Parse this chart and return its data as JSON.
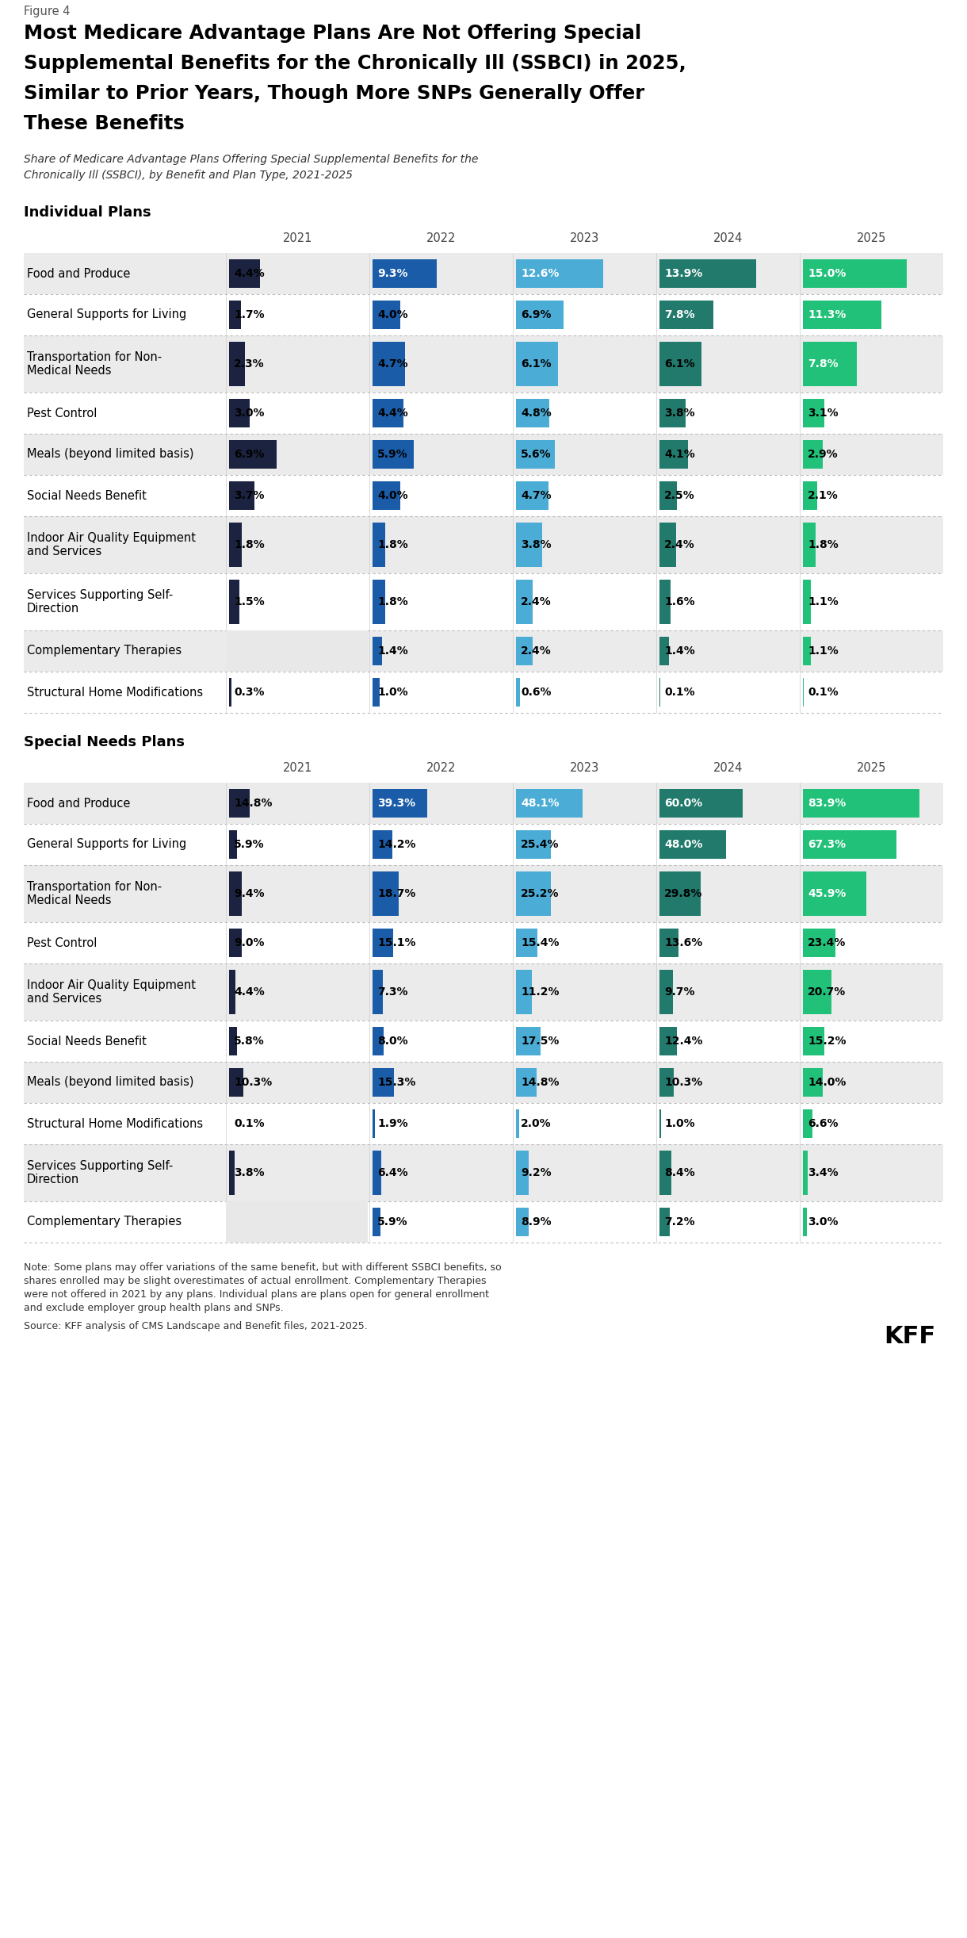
{
  "figure_label": "Figure 4",
  "title": "Most Medicare Advantage Plans Are Not Offering Special\nSupplemental Benefits for the Chronically Ill (SSBCI) in 2025,\nSimilar to Prior Years, Though More SNPs Generally Offer\nThese Benefits",
  "subtitle": "Share of Medicare Advantage Plans Offering Special Supplemental Benefits for the\nChronically Ill (SSBCI), by Benefit and Plan Type, 2021-2025",
  "years": [
    "2021",
    "2022",
    "2023",
    "2024",
    "2025"
  ],
  "year_colors": {
    "2021": "#1c2340",
    "2022": "#1a5ca8",
    "2023": "#4bacd6",
    "2024": "#217a6b",
    "2025": "#22c17a"
  },
  "individual_plans_label": "Individual Plans",
  "individual_plans": [
    {
      "benefit": "Food and Produce",
      "values": [
        4.4,
        9.3,
        12.6,
        13.9,
        15.0
      ]
    },
    {
      "benefit": "General Supports for Living",
      "values": [
        1.7,
        4.0,
        6.9,
        7.8,
        11.3
      ]
    },
    {
      "benefit": "Transportation for Non-\nMedical Needs",
      "values": [
        2.3,
        4.7,
        6.1,
        6.1,
        7.8
      ]
    },
    {
      "benefit": "Pest Control",
      "values": [
        3.0,
        4.4,
        4.8,
        3.8,
        3.1
      ]
    },
    {
      "benefit": "Meals (beyond limited basis)",
      "values": [
        6.9,
        5.9,
        5.6,
        4.1,
        2.9
      ]
    },
    {
      "benefit": "Social Needs Benefit",
      "values": [
        3.7,
        4.0,
        4.7,
        2.5,
        2.1
      ]
    },
    {
      "benefit": "Indoor Air Quality Equipment\nand Services",
      "values": [
        1.8,
        1.8,
        3.8,
        2.4,
        1.8
      ]
    },
    {
      "benefit": "Services Supporting Self-\nDirection",
      "values": [
        1.5,
        1.8,
        2.4,
        1.6,
        1.1
      ]
    },
    {
      "benefit": "Complementary Therapies",
      "values": [
        null,
        1.4,
        2.4,
        1.4,
        1.1
      ]
    },
    {
      "benefit": "Structural Home Modifications",
      "values": [
        0.3,
        1.0,
        0.6,
        0.1,
        0.1
      ]
    }
  ],
  "snp_plans_label": "Special Needs Plans",
  "snp_plans": [
    {
      "benefit": "Food and Produce",
      "values": [
        14.8,
        39.3,
        48.1,
        60.0,
        83.9
      ]
    },
    {
      "benefit": "General Supports for Living",
      "values": [
        5.9,
        14.2,
        25.4,
        48.0,
        67.3
      ]
    },
    {
      "benefit": "Transportation for Non-\nMedical Needs",
      "values": [
        9.4,
        18.7,
        25.2,
        29.8,
        45.9
      ]
    },
    {
      "benefit": "Pest Control",
      "values": [
        9.0,
        15.1,
        15.4,
        13.6,
        23.4
      ]
    },
    {
      "benefit": "Indoor Air Quality Equipment\nand Services",
      "values": [
        4.4,
        7.3,
        11.2,
        9.7,
        20.7
      ]
    },
    {
      "benefit": "Social Needs Benefit",
      "values": [
        5.8,
        8.0,
        17.5,
        12.4,
        15.2
      ]
    },
    {
      "benefit": "Meals (beyond limited basis)",
      "values": [
        10.3,
        15.3,
        14.8,
        10.3,
        14.0
      ]
    },
    {
      "benefit": "Structural Home Modifications",
      "values": [
        0.1,
        1.9,
        2.0,
        1.0,
        6.6
      ]
    },
    {
      "benefit": "Services Supporting Self-\nDirection",
      "values": [
        3.8,
        6.4,
        9.2,
        8.4,
        3.4
      ]
    },
    {
      "benefit": "Complementary Therapies",
      "values": [
        null,
        5.9,
        8.9,
        7.2,
        3.0
      ]
    }
  ],
  "note": "Note: Some plans may offer variations of the same benefit, but with different SSBCI benefits, so\nshares enrolled may be slight overestimates of actual enrollment. Complementary Therapies\nwere not offered in 2021 by any plans. Individual plans are plans open for general enrollment\nand exclude employer group health plans and SNPs.",
  "source": "Source: KFF analysis of CMS Landscape and Benefit files, 2021-2025.",
  "kff_label": "KFF"
}
